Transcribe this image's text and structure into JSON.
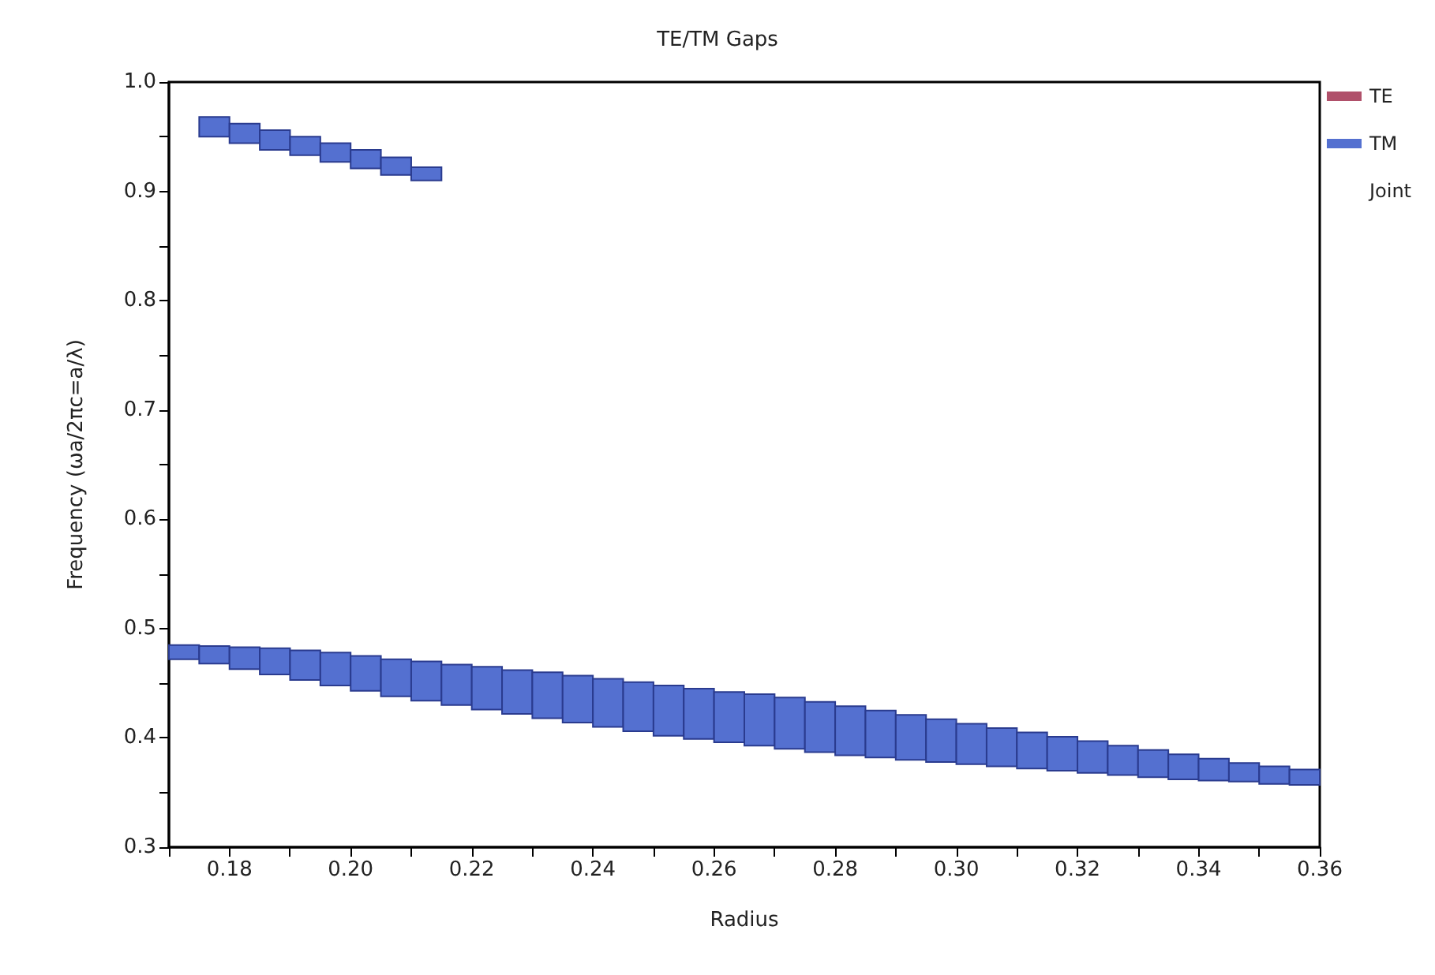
{
  "chart_data": {
    "type": "bar",
    "title": "TE/TM Gaps",
    "xlabel": "Radius",
    "ylabel": "Frequency (ωa/2πc=a/λ)",
    "xlim": [
      0.17,
      0.36
    ],
    "xticks": [
      {
        "value": 0.17,
        "label": null
      },
      {
        "value": 0.18,
        "label": "0.18"
      },
      {
        "value": 0.19,
        "label": null
      },
      {
        "value": 0.2,
        "label": "0.20"
      },
      {
        "value": 0.21,
        "label": null
      },
      {
        "value": 0.22,
        "label": "0.22"
      },
      {
        "value": 0.23,
        "label": null
      },
      {
        "value": 0.24,
        "label": "0.24"
      },
      {
        "value": 0.25,
        "label": null
      },
      {
        "value": 0.26,
        "label": "0.26"
      },
      {
        "value": 0.27,
        "label": null
      },
      {
        "value": 0.28,
        "label": "0.28"
      },
      {
        "value": 0.29,
        "label": null
      },
      {
        "value": 0.3,
        "label": "0.30"
      },
      {
        "value": 0.31,
        "label": null
      },
      {
        "value": 0.32,
        "label": "0.32"
      },
      {
        "value": 0.33,
        "label": null
      },
      {
        "value": 0.34,
        "label": "0.34"
      },
      {
        "value": 0.35,
        "label": null
      },
      {
        "value": 0.36,
        "label": "0.36"
      }
    ],
    "ylim": [
      0.3,
      1.0
    ],
    "yticks": [
      {
        "value": 0.3,
        "label": "0.3"
      },
      {
        "value": 0.35,
        "label": null
      },
      {
        "value": 0.4,
        "label": "0.4"
      },
      {
        "value": 0.45,
        "label": null
      },
      {
        "value": 0.5,
        "label": "0.5"
      },
      {
        "value": 0.55,
        "label": null
      },
      {
        "value": 0.6,
        "label": "0.6"
      },
      {
        "value": 0.65,
        "label": null
      },
      {
        "value": 0.7,
        "label": "0.7"
      },
      {
        "value": 0.75,
        "label": null
      },
      {
        "value": 0.8,
        "label": "0.8"
      },
      {
        "value": 0.85,
        "label": null
      },
      {
        "value": 0.9,
        "label": "0.9"
      },
      {
        "value": 0.95,
        "label": null
      },
      {
        "value": 1.0,
        "label": "1.0"
      }
    ],
    "legend": "right",
    "series": [
      {
        "name": "TE",
        "color": "#b0506a"
      },
      {
        "name": "TM",
        "color": "#5470d0",
        "x": [
          0.1725,
          0.1775,
          0.1825,
          0.1875,
          0.1925,
          0.1975,
          0.2025,
          0.2075,
          0.2125,
          0.2175,
          0.2225,
          0.2275,
          0.2325,
          0.2375,
          0.2425,
          0.2475,
          0.2525,
          0.2575,
          0.2625,
          0.2675,
          0.2725,
          0.2775,
          0.2825,
          0.2875,
          0.2925,
          0.2975,
          0.3025,
          0.3075,
          0.3125,
          0.3175,
          0.3225,
          0.3275,
          0.3325,
          0.3375,
          0.3425,
          0.3475,
          0.3525,
          0.3575
        ],
        "base": [
          0.472,
          0.468,
          0.463,
          0.458,
          0.453,
          0.448,
          0.443,
          0.438,
          0.434,
          0.43,
          0.426,
          0.422,
          0.418,
          0.414,
          0.41,
          0.406,
          0.402,
          0.399,
          0.396,
          0.393,
          0.39,
          0.387,
          0.384,
          0.382,
          0.38,
          0.378,
          0.376,
          0.374,
          0.372,
          0.37,
          0.368,
          0.366,
          0.364,
          0.362,
          0.361,
          0.36,
          0.358,
          0.357
        ],
        "values": [
          0.013,
          0.016,
          0.02,
          0.024,
          0.027,
          0.03,
          0.032,
          0.034,
          0.036,
          0.037,
          0.039,
          0.04,
          0.042,
          0.043,
          0.044,
          0.045,
          0.046,
          0.046,
          0.046,
          0.047,
          0.047,
          0.046,
          0.045,
          0.043,
          0.041,
          0.039,
          0.037,
          0.035,
          0.033,
          0.031,
          0.029,
          0.027,
          0.025,
          0.023,
          0.02,
          0.017,
          0.016,
          0.014
        ]
      },
      {
        "color": "#5470d0",
        "x": [
          0.1775,
          0.1825,
          0.1875,
          0.1925,
          0.1975,
          0.2025,
          0.2075,
          0.2125
        ],
        "base": [
          0.95,
          0.944,
          0.938,
          0.933,
          0.927,
          0.921,
          0.915,
          0.91
        ],
        "values": [
          0.018,
          0.018,
          0.018,
          0.017,
          0.017,
          0.017,
          0.016,
          0.012
        ]
      },
      {
        "name": "Joint"
      }
    ]
  }
}
